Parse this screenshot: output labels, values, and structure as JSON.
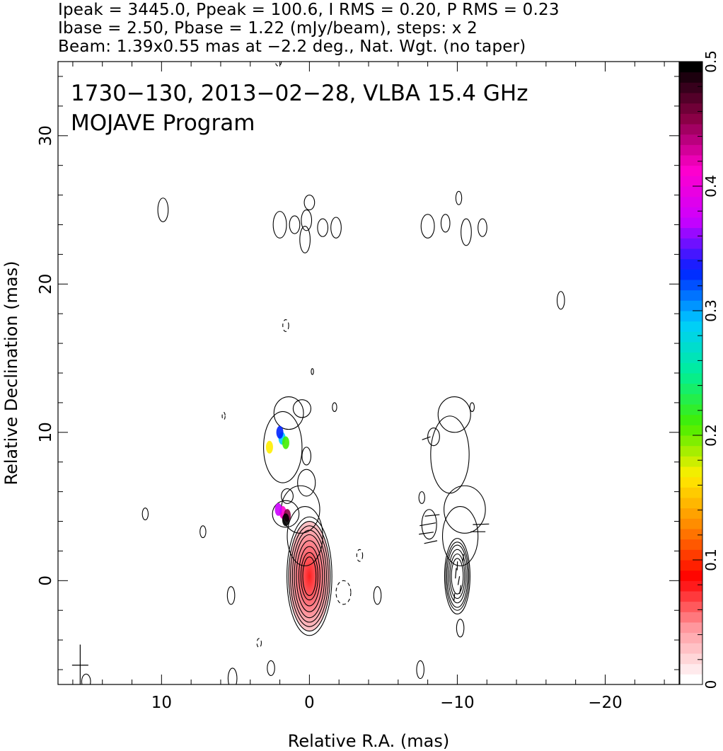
{
  "header": {
    "line1": "Ipeak = 3445.0, Ppeak = 100.6, I RMS = 0.20, P RMS = 0.23",
    "line2": "Ibase = 2.50, Pbase = 1.22 (mJy/beam), steps: x 2",
    "line3": "Beam: 1.39x0.55 mas at −2.2 deg., Nat. Wgt. (no taper)"
  },
  "chart_data": {
    "type": "heatmap",
    "title": "1730−130, 2013−02−28, VLBA 15.4 GHz",
    "subtitle": "MOJAVE Program",
    "xlabel": "Relative R.A. (mas)",
    "ylabel": "Relative Declination (mas)",
    "xlim": [
      17,
      -25
    ],
    "ylim": [
      -7,
      35
    ],
    "x_ticks": [
      10,
      0,
      -10,
      -20
    ],
    "x_tick_labels": [
      "10",
      "0",
      "−10",
      "−20"
    ],
    "y_ticks": [
      0,
      10,
      20,
      30
    ],
    "y_tick_labels": [
      "0",
      "10",
      "20",
      "30"
    ],
    "colorbar": {
      "range": [
        0,
        0.5
      ],
      "ticks": [
        0,
        0.1,
        0.2,
        0.3,
        0.4,
        0.5
      ],
      "tick_labels": [
        "0",
        "0.1",
        "0.2",
        "0.3",
        "0.4",
        "0.5"
      ],
      "colors": [
        "#ffffff",
        "#ff9aa0",
        "#ff0000",
        "#ff8800",
        "#ffee00",
        "#44ee00",
        "#00ee99",
        "#00ccff",
        "#0022ff",
        "#cc00ff",
        "#ff00cc",
        "#880044",
        "#000000"
      ]
    },
    "core": {
      "x": 0,
      "y": 0.3
    },
    "images": [
      {
        "name": "left",
        "core": {
          "x": 0,
          "y": 0.3
        },
        "core_contours": [
          [
            0.45,
            1.3
          ],
          [
            0.58,
            1.6
          ],
          [
            0.72,
            2.0
          ],
          [
            0.88,
            2.4
          ],
          [
            1.02,
            2.8
          ],
          [
            1.15,
            3.1
          ],
          [
            1.28,
            3.4
          ],
          [
            1.4,
            3.7
          ],
          [
            1.52,
            4.0
          ]
        ],
        "jet_blobs": [
          {
            "x": 0.3,
            "y": 3.0,
            "rx": 1.2,
            "ry": 2.0
          },
          {
            "x": 0.6,
            "y": 4.8,
            "rx": 1.3,
            "ry": 1.6
          },
          {
            "x": 1.6,
            "y": 4.5,
            "rx": 0.9,
            "ry": 0.9
          },
          {
            "x": 0.2,
            "y": 6.6,
            "rx": 0.6,
            "ry": 0.9
          },
          {
            "x": 1.8,
            "y": 9.0,
            "rx": 1.3,
            "ry": 2.4
          },
          {
            "x": 1.4,
            "y": 11.3,
            "rx": 1.0,
            "ry": 1.1
          },
          {
            "x": 0.5,
            "y": 11.6,
            "rx": 0.6,
            "ry": 0.6
          },
          {
            "x": 0.2,
            "y": 8.4,
            "rx": 0.3,
            "ry": 0.6
          },
          {
            "x": 1.5,
            "y": 5.7,
            "rx": 0.4,
            "ry": 0.5
          }
        ],
        "isolated": [
          {
            "x": 9.9,
            "y": 25.0,
            "rx": 0.35,
            "ry": 0.8
          },
          {
            "x": 0.0,
            "y": 25.5,
            "rx": 0.35,
            "ry": 0.5
          },
          {
            "x": 0.3,
            "y": 23.0,
            "rx": 0.35,
            "ry": 0.9
          },
          {
            "x": 0.2,
            "y": 24.3,
            "rx": 0.35,
            "ry": 0.7
          },
          {
            "x": 1.0,
            "y": 24.0,
            "rx": 0.35,
            "ry": 0.6
          },
          {
            "x": -0.9,
            "y": 23.8,
            "rx": 0.35,
            "ry": 0.6
          },
          {
            "x": -1.8,
            "y": 23.8,
            "rx": 0.35,
            "ry": 0.7
          },
          {
            "x": 2.0,
            "y": 24.0,
            "rx": 0.45,
            "ry": 0.9
          },
          {
            "x": 11.1,
            "y": 4.5,
            "rx": 0.2,
            "ry": 0.4
          },
          {
            "x": 7.2,
            "y": 3.3,
            "rx": 0.2,
            "ry": 0.4
          },
          {
            "x": 5.3,
            "y": -1.0,
            "rx": 0.25,
            "ry": 0.6
          },
          {
            "x": -4.6,
            "y": -1.0,
            "rx": 0.25,
            "ry": 0.6
          },
          {
            "x": 5.2,
            "y": -6.6,
            "rx": 0.3,
            "ry": 0.7
          },
          {
            "x": 2.6,
            "y": -5.9,
            "rx": 0.25,
            "ry": 0.5
          },
          {
            "x": 15.1,
            "y": -6.8,
            "rx": 0.3,
            "ry": 0.5
          },
          {
            "x": -1.7,
            "y": 11.7,
            "rx": 0.15,
            "ry": 0.3
          },
          {
            "x": -0.2,
            "y": 14.1,
            "rx": 0.08,
            "ry": 0.2
          }
        ],
        "negative": [
          {
            "x": -2.3,
            "y": -0.8,
            "rx": 0.5,
            "ry": 0.8
          },
          {
            "x": -3.4,
            "y": 1.7,
            "rx": 0.2,
            "ry": 0.4
          },
          {
            "x": 1.6,
            "y": 17.2,
            "rx": 0.2,
            "ry": 0.4
          },
          {
            "x": 2.1,
            "y": 35.0,
            "rx": 0.2,
            "ry": 0.3
          },
          {
            "x": 3.4,
            "y": -4.2,
            "rx": 0.15,
            "ry": 0.3
          },
          {
            "x": 5.8,
            "y": 11.1,
            "rx": 0.1,
            "ry": 0.25
          }
        ]
      },
      {
        "name": "right",
        "core": {
          "x": -10,
          "y": 0.3
        },
        "core_contours": [
          [
            0.4,
            1.2
          ],
          [
            0.5,
            1.5
          ],
          [
            0.6,
            1.8
          ],
          [
            0.7,
            2.1
          ],
          [
            0.78,
            2.3
          ],
          [
            0.86,
            2.55
          ]
        ],
        "jet_blobs": [
          {
            "x": -10.2,
            "y": 3.0,
            "rx": 1.2,
            "ry": 2.0
          },
          {
            "x": -10.5,
            "y": 4.8,
            "rx": 1.4,
            "ry": 1.6
          },
          {
            "x": -9.5,
            "y": 8.5,
            "rx": 1.3,
            "ry": 2.6
          },
          {
            "x": -9.8,
            "y": 11.2,
            "rx": 1.1,
            "ry": 1.2
          }
        ],
        "isolated": [
          {
            "x": -8.1,
            "y": 3.8,
            "rx": 0.5,
            "ry": 1.0
          },
          {
            "x": -8.4,
            "y": 9.7,
            "rx": 0.4,
            "ry": 0.6
          },
          {
            "x": -10.2,
            "y": -3.2,
            "rx": 0.25,
            "ry": 0.6
          },
          {
            "x": -7.5,
            "y": -6.0,
            "rx": 0.25,
            "ry": 0.6
          },
          {
            "x": -10.1,
            "y": 25.8,
            "rx": 0.2,
            "ry": 0.45
          },
          {
            "x": -9.2,
            "y": 24.1,
            "rx": 0.3,
            "ry": 0.6
          },
          {
            "x": -10.6,
            "y": 23.5,
            "rx": 0.35,
            "ry": 0.9
          },
          {
            "x": -11.7,
            "y": 23.8,
            "rx": 0.3,
            "ry": 0.6
          },
          {
            "x": -8.0,
            "y": 23.9,
            "rx": 0.45,
            "ry": 0.8
          },
          {
            "x": -17.0,
            "y": 18.9,
            "rx": 0.25,
            "ry": 0.6
          },
          {
            "x": -11.0,
            "y": 11.7,
            "rx": 0.15,
            "ry": 0.3
          },
          {
            "x": -7.6,
            "y": 5.6,
            "rx": 0.2,
            "ry": 0.4
          }
        ],
        "vectors": [
          {
            "x": -7.9,
            "y": 3.2,
            "len": 1.0,
            "angle": 8
          },
          {
            "x": -8.0,
            "y": 3.8,
            "len": 1.1,
            "angle": 10
          },
          {
            "x": -8.3,
            "y": 4.4,
            "len": 1.0,
            "angle": 6
          },
          {
            "x": -8.2,
            "y": 2.6,
            "len": 0.9,
            "angle": 12
          },
          {
            "x": -11.6,
            "y": 3.8,
            "len": 1.1,
            "angle": 2
          },
          {
            "x": -11.4,
            "y": 3.3,
            "len": 1.0,
            "angle": 0
          },
          {
            "x": -9.9,
            "y": 0.5,
            "len": 0.7,
            "angle": 85
          },
          {
            "x": -10.1,
            "y": 0.0,
            "len": 0.6,
            "angle": 80
          },
          {
            "x": -10.0,
            "y": 1.0,
            "len": 0.6,
            "angle": 88
          },
          {
            "x": -10.2,
            "y": -0.6,
            "len": 0.6,
            "angle": 82
          },
          {
            "x": -10.4,
            "y": 1.5,
            "len": 0.6,
            "angle": 86
          },
          {
            "x": -9.8,
            "y": -1.1,
            "len": 0.5,
            "angle": 84
          },
          {
            "x": -7.9,
            "y": 9.6,
            "len": 0.6,
            "angle": 20
          }
        ]
      }
    ],
    "pol_spots": [
      {
        "x": 1.85,
        "y": 9.6,
        "value": 0.3
      },
      {
        "x": 1.6,
        "y": 9.3,
        "value": 0.22
      },
      {
        "x": 2.0,
        "y": 10.0,
        "value": 0.35
      },
      {
        "x": 2.7,
        "y": 9.0,
        "value": 0.18
      },
      {
        "x": 1.8,
        "y": 4.6,
        "value": 0.42
      },
      {
        "x": 1.5,
        "y": 4.4,
        "value": 0.47
      },
      {
        "x": 2.1,
        "y": 4.8,
        "value": 0.39
      },
      {
        "x": 1.6,
        "y": 4.1,
        "value": 0.5
      }
    ],
    "beam": {
      "x": 15.5,
      "y": -5.7,
      "major": 1.39,
      "minor": 0.55,
      "pa": -2.2
    }
  }
}
